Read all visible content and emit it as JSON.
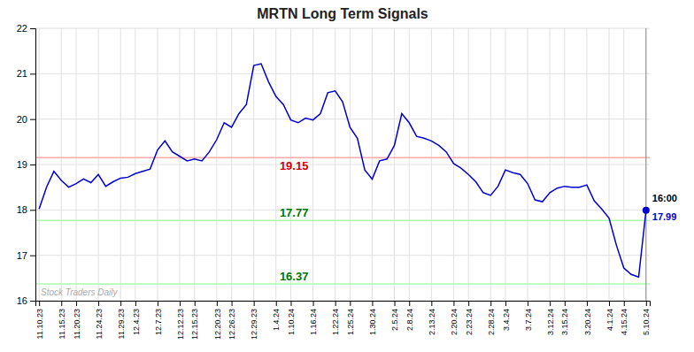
{
  "chart_data": {
    "type": "line",
    "title": "MRTN Long Term Signals",
    "categories": [
      "11.10.23",
      null,
      null,
      "11.15.23",
      null,
      "11.20.23",
      null,
      null,
      "11.24.23",
      null,
      null,
      "11.29.23",
      null,
      "12.4.23",
      null,
      null,
      "12.7.23",
      null,
      null,
      "12.12.23",
      null,
      "12.15.23",
      null,
      null,
      "12.20.23",
      null,
      "12.26.23",
      null,
      null,
      "12.29.23",
      null,
      null,
      "1.4.24",
      null,
      "1.10.24",
      null,
      null,
      "1.16.24",
      null,
      null,
      "1.22.24",
      null,
      "1.25.24",
      null,
      null,
      "1.30.24",
      null,
      null,
      "2.5.24",
      null,
      "2.8.24",
      null,
      null,
      "2.13.24",
      null,
      null,
      "2.20.24",
      null,
      "2.23.24",
      null,
      null,
      "2.28.24",
      null,
      "3.4.24",
      null,
      null,
      "3.7.24",
      null,
      null,
      "3.12.24",
      null,
      "3.15.24",
      null,
      null,
      "3.20.24",
      null,
      null,
      "4.1.24",
      null,
      "4.15.24",
      null,
      null,
      "5.10.24"
    ],
    "values": [
      18.02,
      18.5,
      18.85,
      18.65,
      18.5,
      18.58,
      18.68,
      18.6,
      18.78,
      18.52,
      18.62,
      18.7,
      18.72,
      18.8,
      18.85,
      18.9,
      19.32,
      19.52,
      19.28,
      19.18,
      19.08,
      19.12,
      19.08,
      19.28,
      19.55,
      19.92,
      19.82,
      20.12,
      20.32,
      21.18,
      21.22,
      20.82,
      20.5,
      20.32,
      19.98,
      19.92,
      20.02,
      19.98,
      20.12,
      20.58,
      20.62,
      20.38,
      19.82,
      19.58,
      18.88,
      18.68,
      19.08,
      19.12,
      19.42,
      20.12,
      19.92,
      19.62,
      19.58,
      19.52,
      19.42,
      19.28,
      19.02,
      18.92,
      18.78,
      18.62,
      18.38,
      18.32,
      18.52,
      18.88,
      18.82,
      18.78,
      18.58,
      18.22,
      18.18,
      18.38,
      18.48,
      18.52,
      18.5,
      18.5,
      18.55,
      18.2,
      18.02,
      17.82,
      17.22,
      16.72,
      16.58,
      16.52,
      17.99
    ],
    "color": "#0000cc",
    "hlines": [
      {
        "y": 19.15,
        "color": "#ffaaaa",
        "label": "19.15",
        "label_color": "#cc0000"
      },
      {
        "y": 17.77,
        "color": "#aaffaa",
        "label": "17.77",
        "label_color": "#007700"
      },
      {
        "y": 16.37,
        "color": "#aaffaa",
        "label": "16.37",
        "label_color": "#007700"
      }
    ],
    "vlines": [
      {
        "x": "5.10.24",
        "color": "#888888"
      }
    ],
    "last_point_labels": [
      {
        "text": "16:00",
        "color": "#000000"
      },
      {
        "text": "17.99",
        "color": "#0000cc"
      }
    ],
    "watermark": {
      "text": "Stock Traders Daily",
      "color": "#aaaaaa"
    },
    "ylim": [
      16.0,
      22.0
    ],
    "yticks": [
      16,
      17,
      18,
      19,
      20,
      21,
      22
    ],
    "grid": true
  }
}
